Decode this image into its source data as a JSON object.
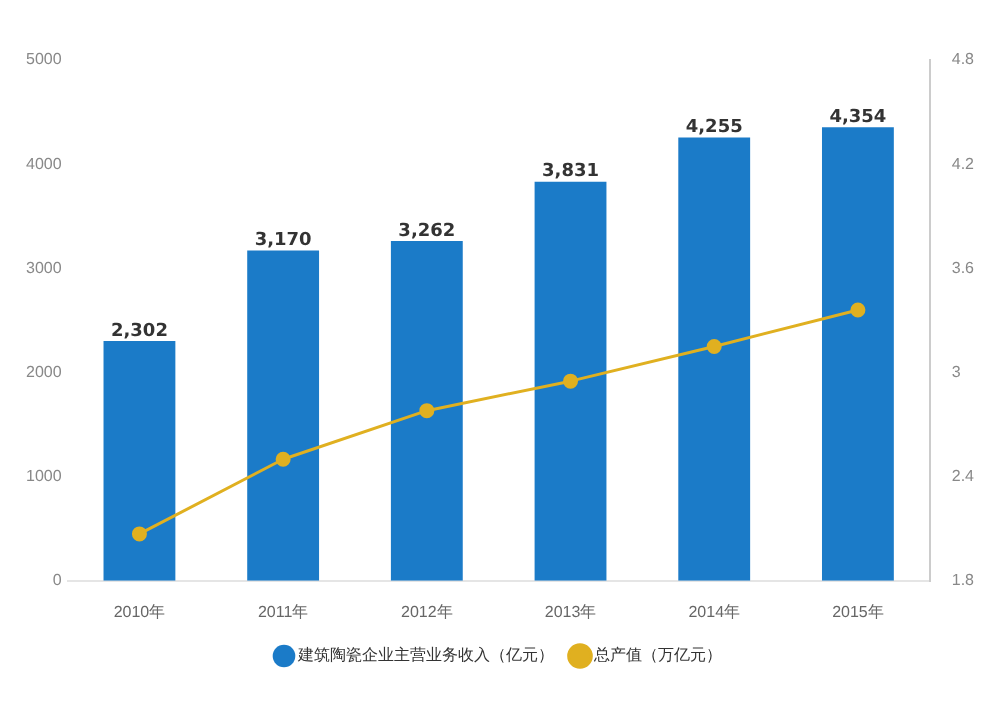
{
  "chart_data": {
    "type": "bar",
    "categories": [
      "2010年",
      "2011年",
      "2012年",
      "2013年",
      "2014年",
      "2015年"
    ],
    "series": [
      {
        "name": "建筑陶瓷企业主营业务收入（亿元）",
        "color": "#1b7bc8",
        "values": [
          2302,
          3170,
          3262,
          3831,
          4255,
          4354
        ],
        "value_labels": [
          "2,302",
          "3,170",
          "3,262",
          "3,831",
          "4,255",
          "4,354"
        ]
      },
      {
        "name": "总产值（万亿元）",
        "type": "line",
        "axis": "y2",
        "color": "#e0b020",
        "values": [
          2.07,
          2.5,
          2.78,
          2.95,
          3.15,
          3.36
        ]
      }
    ],
    "ylim": [
      0,
      5000
    ],
    "yticks": [
      0,
      1000,
      2000,
      3000,
      4000,
      5000
    ],
    "y2lim": [
      1.8,
      4.8
    ],
    "y2ticks": [
      1.8,
      2.4,
      3.0,
      3.6,
      4.2,
      4.8
    ],
    "grid": false,
    "legend": "bottom",
    "marker": "circle"
  }
}
